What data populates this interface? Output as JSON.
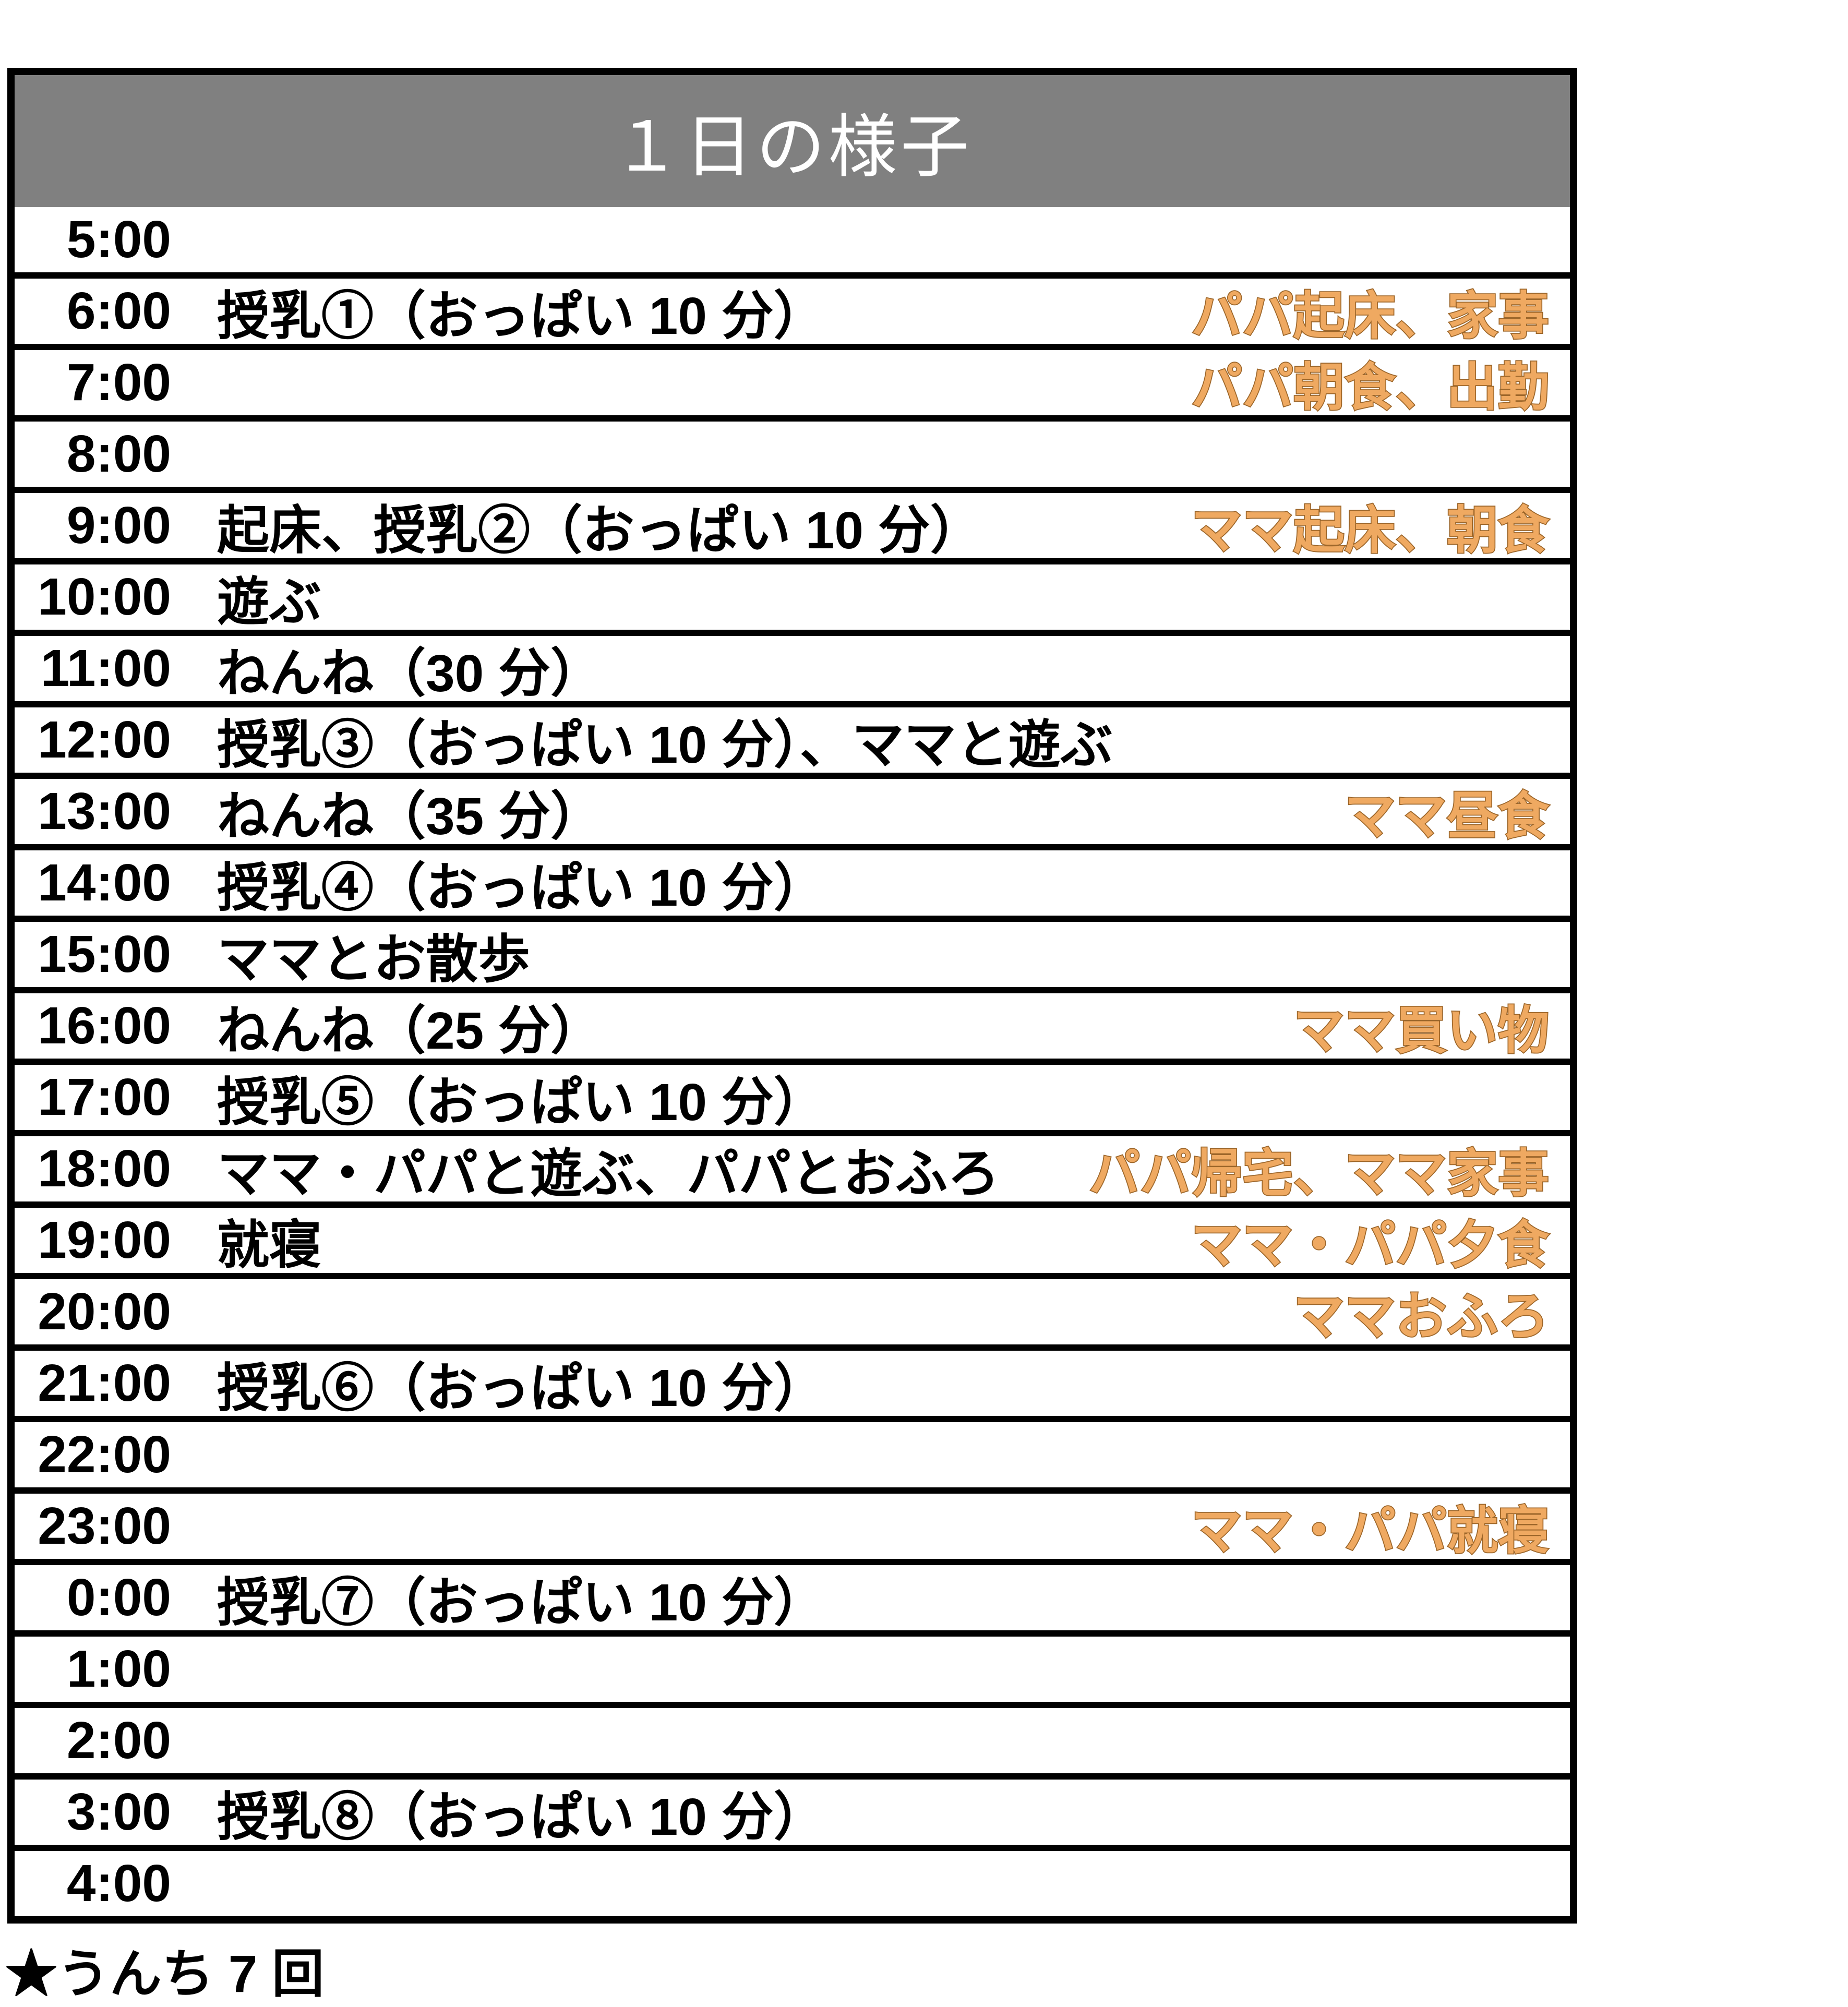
{
  "title": "１日の様子",
  "footer": "★うんち 7 回",
  "colors": {
    "header_bg": "#808080",
    "title_color": "#ffffff",
    "accent_fill": "#EFA961",
    "accent_outline": "#9C662A",
    "border": "#000000"
  },
  "rows": [
    {
      "time": "5:00",
      "activity": "",
      "note": ""
    },
    {
      "time": "6:00",
      "activity": "授乳①（おっぱい 10 分）",
      "note": "パパ起床、家事"
    },
    {
      "time": "7:00",
      "activity": "",
      "note": "パパ朝食、出勤"
    },
    {
      "time": "8:00",
      "activity": "",
      "note": ""
    },
    {
      "time": "9:00",
      "activity": "起床、授乳②（おっぱい 10 分）",
      "note": "ママ起床、朝食"
    },
    {
      "time": "10:00",
      "activity": "遊ぶ",
      "note": ""
    },
    {
      "time": "11:00",
      "activity": "ねんね（30 分）",
      "note": ""
    },
    {
      "time": "12:00",
      "activity": "授乳③（おっぱい 10 分）、ママと遊ぶ",
      "note": ""
    },
    {
      "time": "13:00",
      "activity": "ねんね（35 分）",
      "note": "ママ昼食"
    },
    {
      "time": "14:00",
      "activity": "授乳④（おっぱい 10 分）",
      "note": ""
    },
    {
      "time": "15:00",
      "activity": "ママとお散歩",
      "note": ""
    },
    {
      "time": "16:00",
      "activity": "ねんね（25 分）",
      "note": "ママ買い物"
    },
    {
      "time": "17:00",
      "activity": "授乳⑤（おっぱい 10 分）",
      "note": ""
    },
    {
      "time": "18:00",
      "activity": "ママ・パパと遊ぶ、パパとおふろ",
      "note": "パパ帰宅、ママ家事"
    },
    {
      "time": "19:00",
      "activity": "就寝",
      "note": "ママ・パパ夕食"
    },
    {
      "time": "20:00",
      "activity": "",
      "note": "ママおふろ"
    },
    {
      "time": "21:00",
      "activity": "授乳⑥（おっぱい 10 分）",
      "note": ""
    },
    {
      "time": "22:00",
      "activity": "",
      "note": ""
    },
    {
      "time": "23:00",
      "activity": "",
      "note": "ママ・パパ就寝"
    },
    {
      "time": "0:00",
      "activity": "授乳⑦（おっぱい 10 分）",
      "note": ""
    },
    {
      "time": "1:00",
      "activity": "",
      "note": ""
    },
    {
      "time": "2:00",
      "activity": "",
      "note": ""
    },
    {
      "time": "3:00",
      "activity": "授乳⑧（おっぱい 10 分）",
      "note": ""
    },
    {
      "time": "4:00",
      "activity": "",
      "note": ""
    }
  ]
}
